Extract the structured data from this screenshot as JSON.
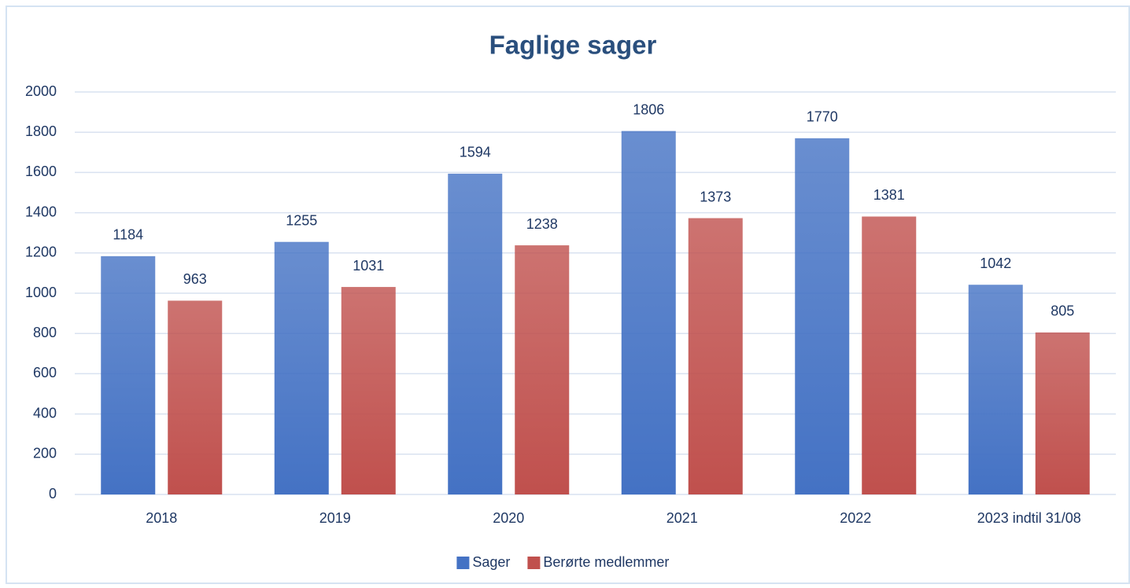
{
  "chart_data": {
    "type": "bar",
    "title": "Faglige sager",
    "categories": [
      "2018",
      "2019",
      "2020",
      "2021",
      "2022",
      "2023 indtil 31/08"
    ],
    "series": [
      {
        "name": "Sager",
        "color": "#4472c4",
        "values": [
          1184,
          1255,
          1594,
          1806,
          1770,
          1042
        ]
      },
      {
        "name": "Berørte medlemmer",
        "color": "#c0504d",
        "values": [
          963,
          1031,
          1238,
          1373,
          1381,
          805
        ]
      }
    ],
    "ylim": [
      0,
      2000
    ],
    "yticks": [
      0,
      200,
      400,
      600,
      800,
      1000,
      1200,
      1400,
      1600,
      1800,
      2000
    ],
    "grid": true,
    "legend": "bottom"
  }
}
